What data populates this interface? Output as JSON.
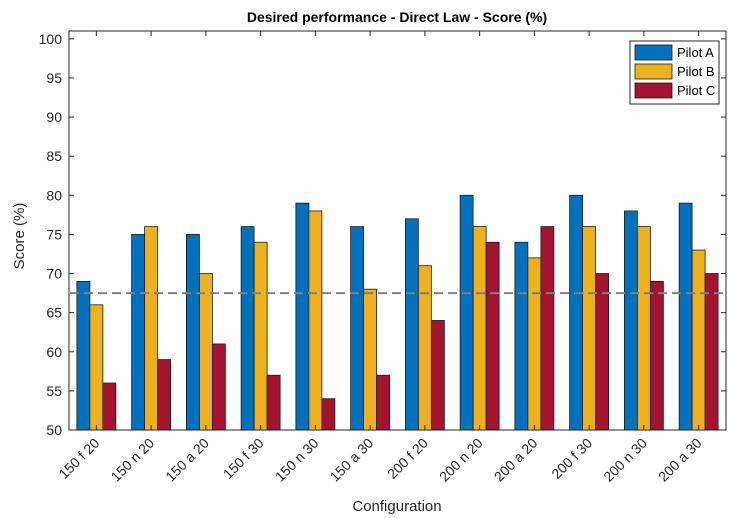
{
  "chart_data": {
    "type": "bar",
    "title": "Desired performance - Direct Law - Score (%)",
    "xlabel": "Configuration",
    "ylabel": "Score (%)",
    "ylim": [
      50,
      101
    ],
    "yticks": [
      50,
      55,
      60,
      65,
      70,
      75,
      80,
      85,
      90,
      95,
      100
    ],
    "categories": [
      "150 f 20",
      "150 n 20",
      "150 a 20",
      "150 f 30",
      "150 n 30",
      "150 a 30",
      "200 f 20",
      "200 n 20",
      "200 a 20",
      "200 f 30",
      "200 n 30",
      "200 a 30"
    ],
    "series": [
      {
        "name": "Pilot A",
        "color": "#0072BD",
        "values": [
          69,
          75,
          75,
          76,
          79,
          76,
          77,
          80,
          74,
          80,
          78,
          79
        ]
      },
      {
        "name": "Pilot B",
        "color": "#EDB120",
        "values": [
          66,
          76,
          70,
          74,
          78,
          68,
          71,
          76,
          72,
          76,
          76,
          73
        ]
      },
      {
        "name": "Pilot C",
        "color": "#A2142F",
        "values": [
          56,
          59,
          61,
          57,
          54,
          57,
          64,
          74,
          76,
          70,
          69,
          70
        ]
      }
    ],
    "reference_line": {
      "y": 67.5,
      "style": "dashed",
      "color": "#808080"
    },
    "legend_position": "top-right",
    "grid": false
  }
}
